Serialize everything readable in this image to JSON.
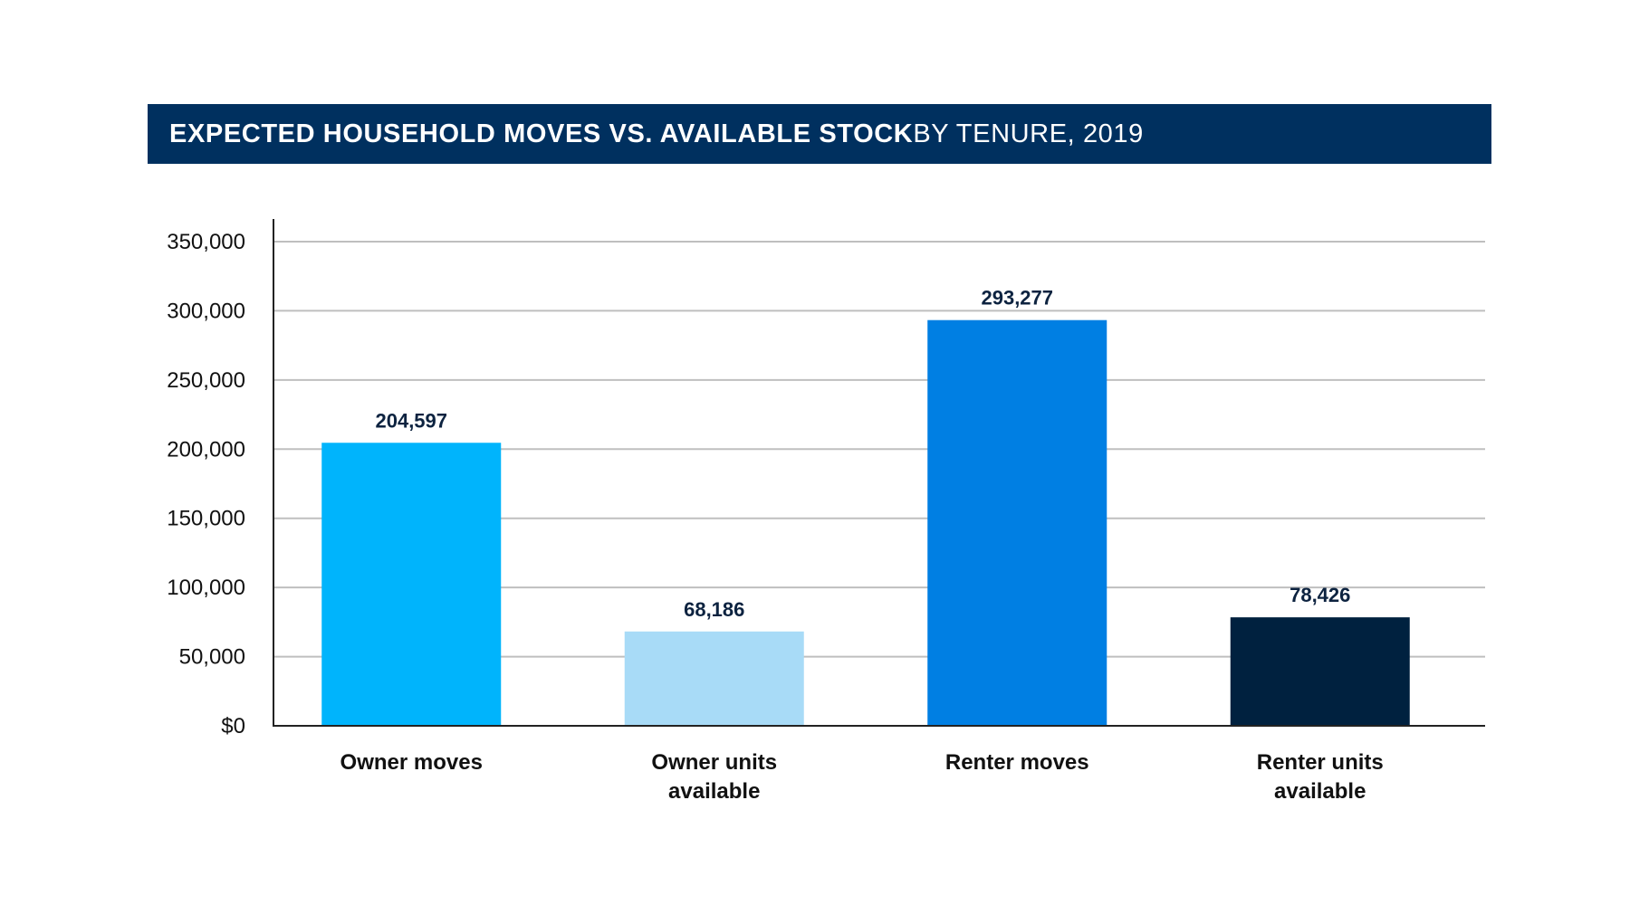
{
  "title": {
    "bold": "EXPECTED HOUSEHOLD MOVES VS. AVAILABLE STOCK",
    "light": " BY TENURE, 2019"
  },
  "colors": {
    "title_bg": "#00305f",
    "grid": "#bfbfbf",
    "axis": "#222222"
  },
  "chart_data": {
    "type": "bar",
    "title": "EXPECTED HOUSEHOLD MOVES VS. AVAILABLE STOCK BY TENURE, 2019",
    "categories": [
      [
        "Owner moves"
      ],
      [
        "Owner units",
        "available"
      ],
      [
        "Renter moves"
      ],
      [
        "Renter units",
        "available"
      ]
    ],
    "values": [
      204597,
      68186,
      293277,
      78426
    ],
    "value_labels": [
      "204,597",
      "68,186",
      "293,277",
      "78,426"
    ],
    "bar_colors": [
      "#00b4fc",
      "#a8dbf7",
      "#007fe3",
      "#00213f"
    ],
    "ylim": [
      0,
      350000
    ],
    "yticks": [
      0,
      50000,
      100000,
      150000,
      200000,
      250000,
      300000,
      350000
    ],
    "ytick_labels": [
      "$0",
      "50,000",
      "100,000",
      "150,000",
      "200,000",
      "250,000",
      "300,000",
      "350,000"
    ],
    "grid": true,
    "xlabel": "",
    "ylabel": ""
  }
}
